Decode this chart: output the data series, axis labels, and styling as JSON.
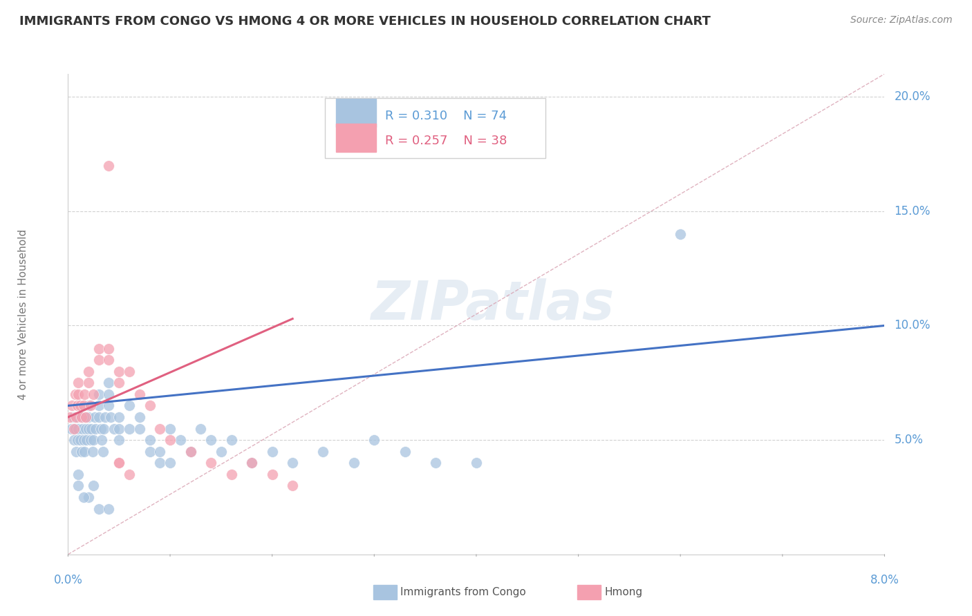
{
  "title": "IMMIGRANTS FROM CONGO VS HMONG 4 OR MORE VEHICLES IN HOUSEHOLD CORRELATION CHART",
  "source": "Source: ZipAtlas.com",
  "xlim": [
    0.0,
    0.08
  ],
  "ylim": [
    0.0,
    0.21
  ],
  "watermark": "ZIPatlas",
  "legend1_R": "0.310",
  "legend1_N": "74",
  "legend2_R": "0.257",
  "legend2_N": "38",
  "congo_color": "#a8c4e0",
  "hmong_color": "#f4a0b0",
  "congo_line_color": "#4472c4",
  "hmong_line_color": "#e06080",
  "ref_line_color": "#d0a0a8",
  "grid_color": "#c8c8c8",
  "congo_trend_x0": 0.0,
  "congo_trend_y0": 0.065,
  "congo_trend_x1": 0.08,
  "congo_trend_y1": 0.1,
  "hmong_trend_x0": 0.0,
  "hmong_trend_y0": 0.06,
  "hmong_trend_x1": 0.022,
  "hmong_trend_y1": 0.103,
  "congo_x": [
    0.0003,
    0.0005,
    0.0006,
    0.0007,
    0.0008,
    0.0009,
    0.001,
    0.001,
    0.0012,
    0.0013,
    0.0014,
    0.0015,
    0.0015,
    0.0016,
    0.0017,
    0.0018,
    0.002,
    0.002,
    0.002,
    0.0022,
    0.0023,
    0.0024,
    0.0025,
    0.0026,
    0.0027,
    0.003,
    0.003,
    0.003,
    0.0032,
    0.0033,
    0.0034,
    0.0035,
    0.0036,
    0.004,
    0.004,
    0.004,
    0.0042,
    0.0045,
    0.005,
    0.005,
    0.005,
    0.006,
    0.006,
    0.007,
    0.007,
    0.008,
    0.008,
    0.009,
    0.009,
    0.01,
    0.01,
    0.011,
    0.012,
    0.013,
    0.014,
    0.015,
    0.016,
    0.018,
    0.02,
    0.022,
    0.025,
    0.028,
    0.03,
    0.033,
    0.036,
    0.04,
    0.06,
    0.001,
    0.001,
    0.002,
    0.0015,
    0.0025,
    0.003,
    0.004
  ],
  "congo_y": [
    0.055,
    0.06,
    0.05,
    0.055,
    0.045,
    0.05,
    0.06,
    0.055,
    0.05,
    0.045,
    0.055,
    0.05,
    0.06,
    0.045,
    0.055,
    0.05,
    0.065,
    0.06,
    0.055,
    0.05,
    0.055,
    0.045,
    0.05,
    0.06,
    0.055,
    0.07,
    0.065,
    0.06,
    0.055,
    0.05,
    0.045,
    0.055,
    0.06,
    0.075,
    0.07,
    0.065,
    0.06,
    0.055,
    0.05,
    0.055,
    0.06,
    0.055,
    0.065,
    0.06,
    0.055,
    0.045,
    0.05,
    0.04,
    0.045,
    0.04,
    0.055,
    0.05,
    0.045,
    0.055,
    0.05,
    0.045,
    0.05,
    0.04,
    0.045,
    0.04,
    0.045,
    0.04,
    0.05,
    0.045,
    0.04,
    0.04,
    0.14,
    0.03,
    0.035,
    0.025,
    0.025,
    0.03,
    0.02,
    0.02
  ],
  "hmong_x": [
    0.0002,
    0.0004,
    0.0006,
    0.0007,
    0.0008,
    0.0009,
    0.001,
    0.001,
    0.0012,
    0.0013,
    0.0015,
    0.0016,
    0.0017,
    0.002,
    0.002,
    0.0022,
    0.0025,
    0.003,
    0.003,
    0.004,
    0.004,
    0.005,
    0.005,
    0.006,
    0.007,
    0.008,
    0.009,
    0.01,
    0.012,
    0.014,
    0.016,
    0.018,
    0.02,
    0.022,
    0.004,
    0.005,
    0.006,
    0.005
  ],
  "hmong_y": [
    0.06,
    0.065,
    0.055,
    0.07,
    0.06,
    0.065,
    0.075,
    0.07,
    0.065,
    0.06,
    0.065,
    0.07,
    0.06,
    0.08,
    0.075,
    0.065,
    0.07,
    0.09,
    0.085,
    0.09,
    0.085,
    0.08,
    0.075,
    0.08,
    0.07,
    0.065,
    0.055,
    0.05,
    0.045,
    0.04,
    0.035,
    0.04,
    0.035,
    0.03,
    0.17,
    0.04,
    0.035,
    0.04
  ]
}
